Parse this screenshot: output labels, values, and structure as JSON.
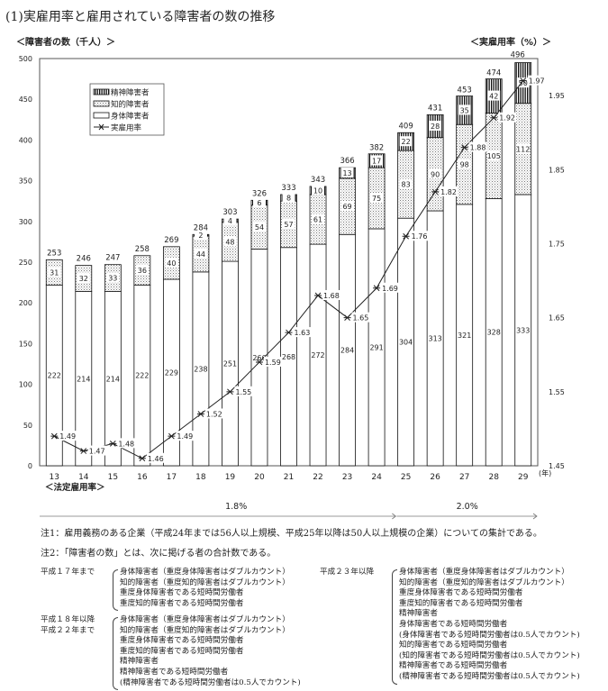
{
  "title": "(1)実雇用率と雇用されている障害者の数の推移",
  "chart_data": {
    "type": "bar",
    "stacked": true,
    "title": "(1)実雇用率と雇用されている障害者の数の推移",
    "ylabel": "＜障害者の数（千人）＞",
    "y2label": "＜実雇用率（%）＞",
    "xunit": "(年)",
    "categories": [
      "13",
      "14",
      "15",
      "16",
      "17",
      "18",
      "19",
      "20",
      "21",
      "22",
      "23",
      "24",
      "25",
      "26",
      "27",
      "28",
      "29"
    ],
    "ylim": [
      0,
      500
    ],
    "yticks": [
      0,
      50,
      100,
      150,
      200,
      250,
      300,
      350,
      400,
      450,
      500
    ],
    "y2lim": [
      1.45,
      2.0
    ],
    "y2ticks": [
      "1.45",
      "1.55",
      "1.65",
      "1.75",
      "1.85",
      "1.95"
    ],
    "series": [
      {
        "name": "身体障害者",
        "values": [
          222,
          214,
          214,
          222,
          229,
          238,
          251,
          266,
          268,
          272,
          284,
          291,
          304,
          313,
          321,
          328,
          333
        ],
        "pattern": "blank"
      },
      {
        "name": "知的障害者",
        "values": [
          31,
          32,
          33,
          36,
          40,
          44,
          48,
          54,
          57,
          61,
          69,
          75,
          83,
          90,
          98,
          105,
          112
        ],
        "pattern": "dots"
      },
      {
        "name": "精神障害者",
        "values": [
          null,
          null,
          null,
          null,
          null,
          2,
          4,
          6,
          8,
          10,
          13,
          17,
          22,
          28,
          35,
          42,
          50
        ],
        "pattern": "vertical-stripes"
      }
    ],
    "totals": [
      253,
      246,
      247,
      258,
      269,
      284,
      303,
      326,
      333,
      343,
      366,
      382,
      409,
      431,
      453,
      474,
      496
    ],
    "line_series": {
      "name": "実雇用率",
      "axis": "right",
      "values": [
        1.49,
        1.47,
        1.48,
        1.46,
        1.49,
        1.52,
        1.55,
        1.59,
        1.63,
        1.68,
        1.65,
        1.69,
        1.76,
        1.82,
        1.88,
        1.92,
        1.97
      ]
    },
    "legend": {
      "placement": "top-left",
      "order": [
        "精神障害者",
        "知的障害者",
        "身体障害者",
        "実雇用率"
      ]
    },
    "grid": false,
    "statutory": {
      "label": "＜法定雇用率＞",
      "periods": [
        {
          "label": "1.8%",
          "from": "13",
          "to": "24"
        },
        {
          "label": "2.0%",
          "from": "25",
          "to": "29"
        }
      ]
    }
  },
  "notes": {
    "note1": "注1：雇用義務のある企業（平成24年までは56人以上規模、平成25年以降は50人以上規模の企業）についての集計である。",
    "note2": "注2：「障害者の数」とは、次に掲げる者の合計数である。",
    "blocks": [
      {
        "label": "平成１７年まで",
        "items": [
          "身体障害者（重度身体障害者はダブルカウント）",
          "知的障害者（重度知的障害者はダブルカウント）",
          "重度身体障害者である短時間労働者",
          "重度知的障害者である短時間労働者"
        ]
      },
      {
        "label": "平成１８年以降\n平成２２年まで",
        "items": [
          "身体障害者（重度身体障害者はダブルカウント）",
          "知的障害者（重度知的障害者はダブルカウント）",
          "重度身体障害者である短時間労働者",
          "重度知的障害者である短時間労働者",
          "精神障害者",
          "精神障害者である短時間労働者",
          "(精神障害者である短時間労働者は0.5人でカウント)"
        ]
      },
      {
        "label": "平成２３年以降",
        "items": [
          "身体障害者（重度身体障害者はダブルカウント）",
          "知的障害者（重度知的障害者はダブルカウント）",
          "重度身体障害者である短時間労働者",
          "重度知的障害者である短時間労働者",
          "精神障害者",
          "身体障害者である短時間労働者",
          "(身体障害者である短時間労働者は0.5人でカウント)",
          "知的障害者である短時間労働者",
          "(知的障害者である短時間労働者は0.5人でカウント)",
          "精神障害者である短時間労働者",
          "(精神障害者である短時間労働者は0.5人でカウント)"
        ]
      }
    ]
  }
}
